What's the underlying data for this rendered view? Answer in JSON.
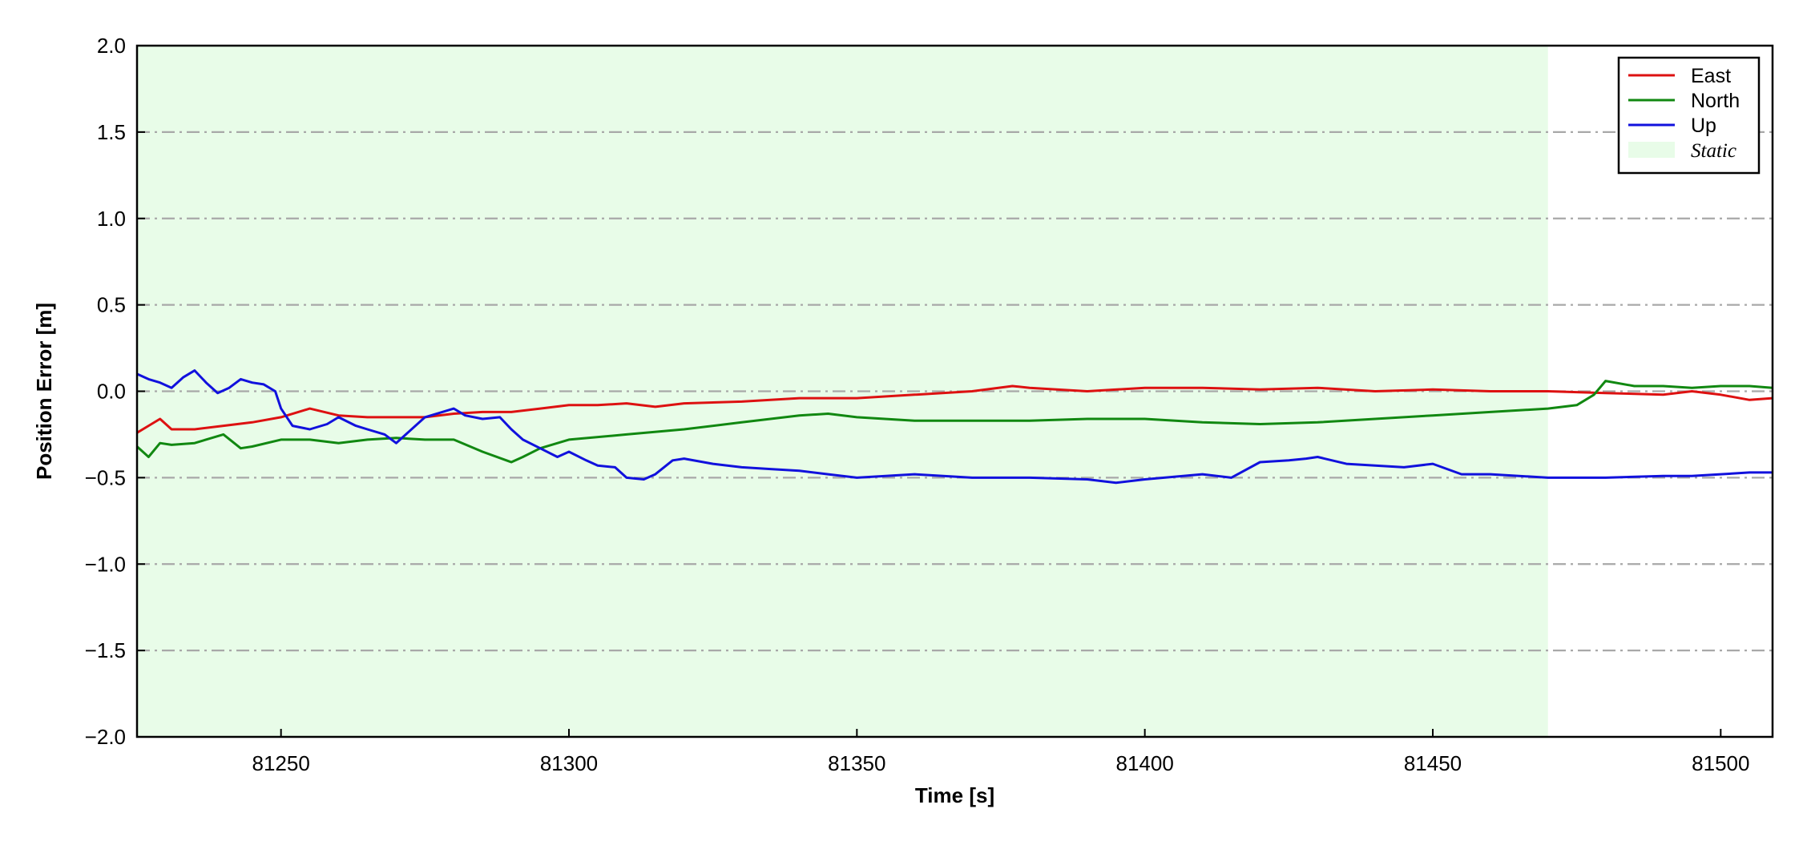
{
  "chart_data": {
    "type": "line",
    "title": "",
    "xlabel": "Time [s]",
    "ylabel": "Position Error [m]",
    "xlim": [
      81225,
      81509
    ],
    "ylim": [
      -2.0,
      2.0
    ],
    "xticks": [
      81250,
      81300,
      81350,
      81400,
      81450,
      81500
    ],
    "xtick_labels": [
      "81250",
      "81300",
      "81350",
      "81400",
      "81450",
      "81500"
    ],
    "yticks": [
      -2.0,
      -1.5,
      -1.0,
      -0.5,
      0.0,
      0.5,
      1.0,
      1.5,
      2.0
    ],
    "ytick_labels": [
      "−2.0",
      "−1.5",
      "−1.0",
      "−0.5",
      "0.0",
      "0.5",
      "1.0",
      "1.5",
      "2.0"
    ],
    "grid": "horizontal dash-dot",
    "legend_position": "top-right",
    "shaded_region": {
      "label": "Static",
      "x": [
        81225,
        81470
      ],
      "color": "#e8fce8"
    },
    "series": [
      {
        "name": "East",
        "color": "#dd1111",
        "x": [
          81225,
          81227,
          81229,
          81231,
          81235,
          81240,
          81245,
          81250,
          81253,
          81255,
          81260,
          81265,
          81270,
          81275,
          81280,
          81285,
          81290,
          81295,
          81300,
          81305,
          81310,
          81315,
          81320,
          81330,
          81340,
          81350,
          81360,
          81370,
          81377,
          81380,
          81390,
          81400,
          81410,
          81420,
          81430,
          81440,
          81450,
          81460,
          81470,
          81480,
          81490,
          81495,
          81500,
          81505,
          81509
        ],
        "y": [
          -0.24,
          -0.2,
          -0.16,
          -0.22,
          -0.22,
          -0.2,
          -0.18,
          -0.15,
          -0.12,
          -0.1,
          -0.14,
          -0.15,
          -0.15,
          -0.15,
          -0.13,
          -0.12,
          -0.12,
          -0.1,
          -0.08,
          -0.08,
          -0.07,
          -0.09,
          -0.07,
          -0.06,
          -0.04,
          -0.04,
          -0.02,
          0.0,
          0.03,
          0.02,
          0.0,
          0.02,
          0.02,
          0.01,
          0.02,
          0.0,
          0.01,
          0.0,
          0.0,
          -0.01,
          -0.02,
          0.0,
          -0.02,
          -0.05,
          -0.04
        ]
      },
      {
        "name": "North",
        "color": "#118811",
        "x": [
          81225,
          81227,
          81229,
          81231,
          81235,
          81240,
          81243,
          81245,
          81250,
          81255,
          81260,
          81265,
          81270,
          81275,
          81280,
          81285,
          81290,
          81292,
          81295,
          81300,
          81310,
          81320,
          81330,
          81340,
          81345,
          81350,
          81360,
          81370,
          81380,
          81390,
          81400,
          81410,
          81420,
          81430,
          81440,
          81450,
          81460,
          81470,
          81475,
          81478,
          81480,
          81485,
          81490,
          81495,
          81500,
          81505,
          81509
        ],
        "y": [
          -0.32,
          -0.38,
          -0.3,
          -0.31,
          -0.3,
          -0.25,
          -0.33,
          -0.32,
          -0.28,
          -0.28,
          -0.3,
          -0.28,
          -0.27,
          -0.28,
          -0.28,
          -0.35,
          -0.41,
          -0.38,
          -0.33,
          -0.28,
          -0.25,
          -0.22,
          -0.18,
          -0.14,
          -0.13,
          -0.15,
          -0.17,
          -0.17,
          -0.17,
          -0.16,
          -0.16,
          -0.18,
          -0.19,
          -0.18,
          -0.16,
          -0.14,
          -0.12,
          -0.1,
          -0.08,
          -0.02,
          0.06,
          0.03,
          0.03,
          0.02,
          0.03,
          0.03,
          0.02
        ]
      },
      {
        "name": "Up",
        "color": "#1111dd",
        "x": [
          81225,
          81227,
          81229,
          81231,
          81233,
          81235,
          81237,
          81239,
          81241,
          81243,
          81245,
          81247,
          81249,
          81250,
          81252,
          81255,
          81258,
          81260,
          81263,
          81265,
          81268,
          81270,
          81272,
          81275,
          81278,
          81280,
          81282,
          81285,
          81288,
          81290,
          81292,
          81295,
          81298,
          81300,
          81303,
          81305,
          81308,
          81310,
          81313,
          81315,
          81318,
          81320,
          81325,
          81330,
          81335,
          81340,
          81345,
          81350,
          81360,
          81370,
          81380,
          81390,
          81395,
          81400,
          81410,
          81415,
          81420,
          81425,
          81428,
          81430,
          81435,
          81440,
          81445,
          81450,
          81455,
          81460,
          81470,
          81480,
          81490,
          81495,
          81500,
          81505,
          81509
        ],
        "y": [
          0.1,
          0.07,
          0.05,
          0.02,
          0.08,
          0.12,
          0.05,
          -0.01,
          0.02,
          0.07,
          0.05,
          0.04,
          0.0,
          -0.1,
          -0.2,
          -0.22,
          -0.19,
          -0.15,
          -0.2,
          -0.22,
          -0.25,
          -0.3,
          -0.24,
          -0.15,
          -0.12,
          -0.1,
          -0.14,
          -0.16,
          -0.15,
          -0.22,
          -0.28,
          -0.33,
          -0.38,
          -0.35,
          -0.4,
          -0.43,
          -0.44,
          -0.5,
          -0.51,
          -0.48,
          -0.4,
          -0.39,
          -0.42,
          -0.44,
          -0.45,
          -0.46,
          -0.48,
          -0.5,
          -0.48,
          -0.5,
          -0.5,
          -0.51,
          -0.53,
          -0.51,
          -0.48,
          -0.5,
          -0.41,
          -0.4,
          -0.39,
          -0.38,
          -0.42,
          -0.43,
          -0.44,
          -0.42,
          -0.48,
          -0.48,
          -0.5,
          -0.5,
          -0.49,
          -0.49,
          -0.48,
          -0.47,
          -0.47
        ]
      }
    ]
  }
}
